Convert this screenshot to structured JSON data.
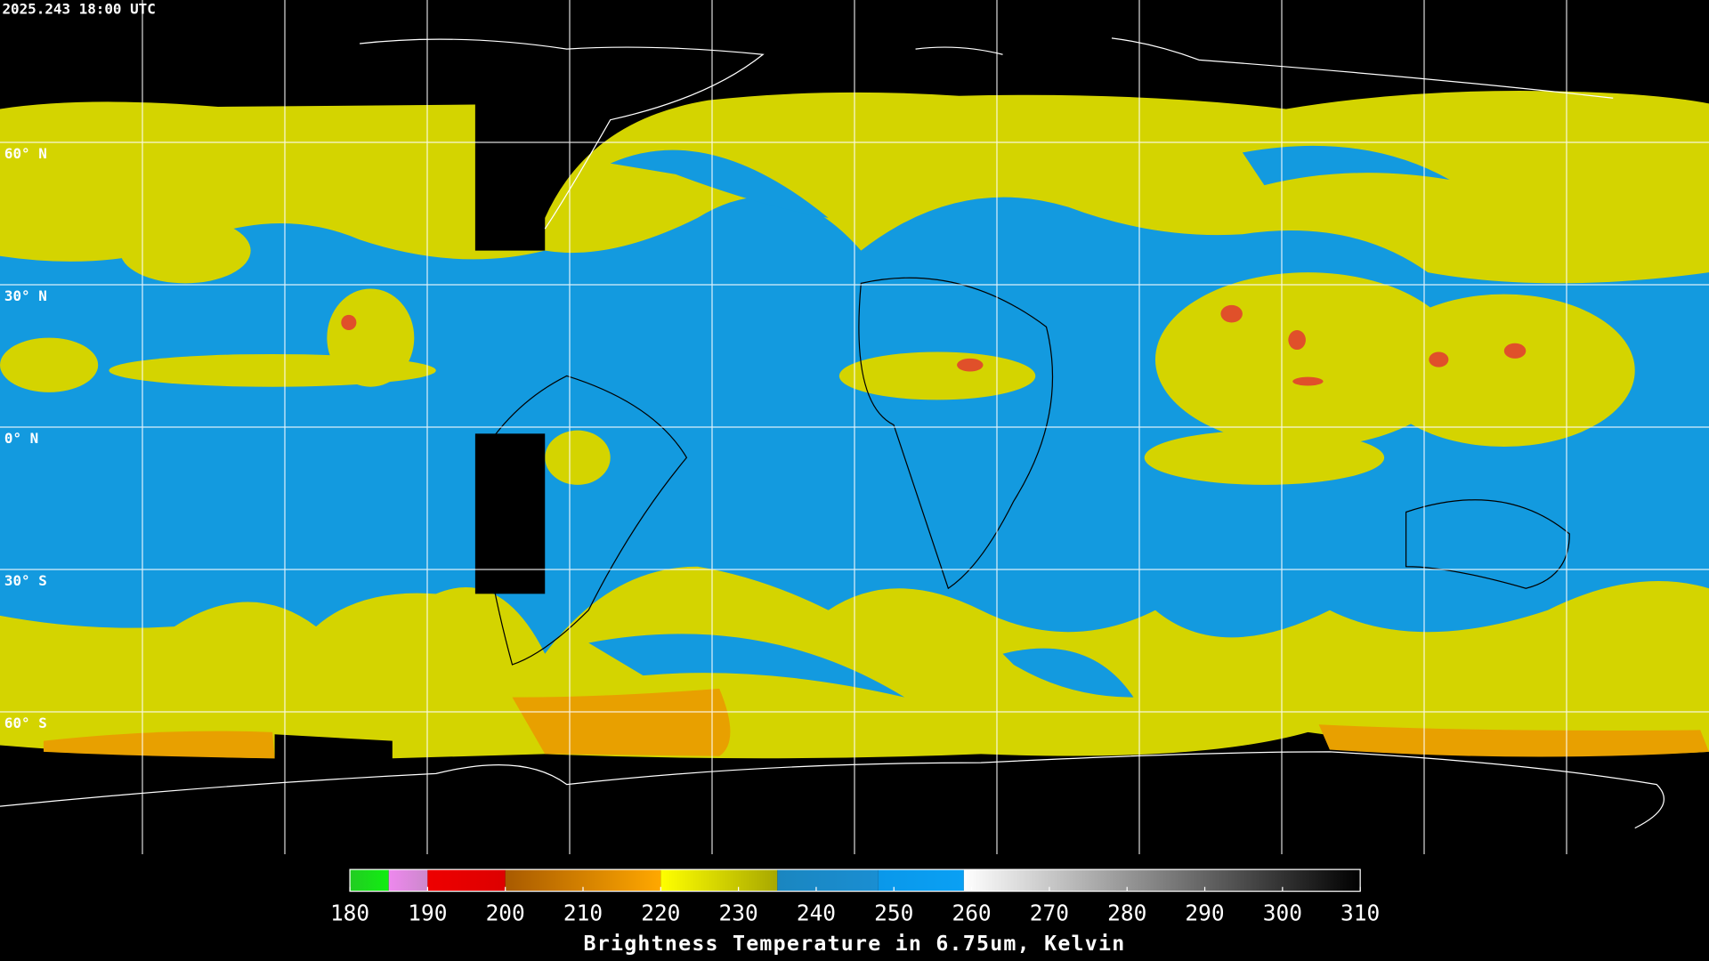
{
  "header": {
    "timestamp": "2025.243 18:00 UTC"
  },
  "map": {
    "lat_labels": [
      "60° N",
      "30° N",
      "0° N",
      "30° S",
      "60° S"
    ]
  },
  "colorbar": {
    "range": [
      180,
      310
    ],
    "ticks": [
      180,
      190,
      200,
      210,
      220,
      230,
      240,
      250,
      260,
      270,
      280,
      290,
      300,
      310
    ],
    "label": "Brightness Temperature in 6.75um, Kelvin",
    "segments": [
      {
        "from": 180,
        "to": 185,
        "colors": [
          "#22cc22",
          "#11ee11"
        ]
      },
      {
        "from": 185,
        "to": 190,
        "colors": [
          "#ee88ee",
          "#cc88cc"
        ]
      },
      {
        "from": 190,
        "to": 200,
        "colors": [
          "#ee0000",
          "#dd0000"
        ]
      },
      {
        "from": 200,
        "to": 220,
        "colors": [
          "#a85a00",
          "#ffa800"
        ]
      },
      {
        "from": 220,
        "to": 235,
        "colors": [
          "#ffff00",
          "#a8a800"
        ]
      },
      {
        "from": 235,
        "to": 248,
        "colors": [
          "#1a86c0",
          "#1a8ed2"
        ]
      },
      {
        "from": 248,
        "to": 259,
        "colors": [
          "#0a98ea",
          "#0aa0f4"
        ]
      },
      {
        "from": 259,
        "to": 310,
        "colors": [
          "#ffffff",
          "#000000"
        ]
      }
    ]
  }
}
